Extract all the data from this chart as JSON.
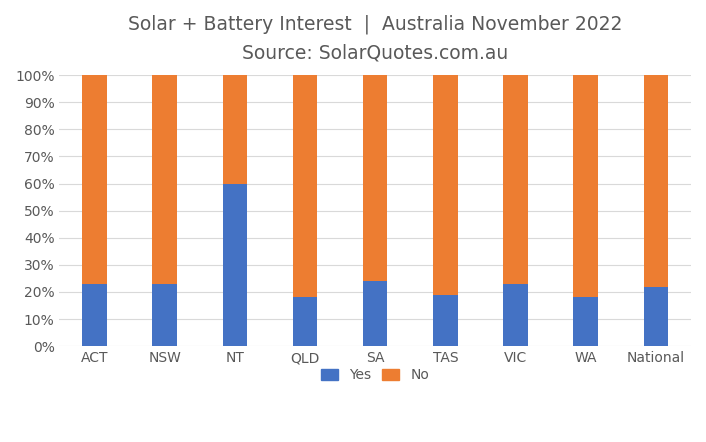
{
  "categories": [
    "ACT",
    "NSW",
    "NT",
    "QLD",
    "SA",
    "TAS",
    "VIC",
    "WA",
    "National"
  ],
  "yes_values": [
    23,
    23,
    60,
    18,
    24,
    19,
    23,
    18,
    22
  ],
  "no_values": [
    77,
    77,
    40,
    82,
    76,
    81,
    77,
    82,
    78
  ],
  "yes_color": "#4472C4",
  "no_color": "#ED7D31",
  "title_line1": "Solar + Battery Interest  |  Australia November 2022",
  "title_line2": "Source: SolarQuotes.com.au",
  "title_color": "#595959",
  "ylim": [
    0,
    100
  ],
  "yticks": [
    0,
    10,
    20,
    30,
    40,
    50,
    60,
    70,
    80,
    90,
    100
  ],
  "ytick_labels": [
    "0%",
    "10%",
    "20%",
    "30%",
    "40%",
    "50%",
    "60%",
    "70%",
    "80%",
    "90%",
    "100%"
  ],
  "legend_yes_label": "Yes",
  "legend_no_label": "No",
  "background_color": "#ffffff",
  "grid_color": "#d9d9d9",
  "bar_width": 0.35,
  "title_fontsize": 13.5,
  "subtitle_fontsize": 12.5,
  "tick_fontsize": 10,
  "legend_fontsize": 10
}
